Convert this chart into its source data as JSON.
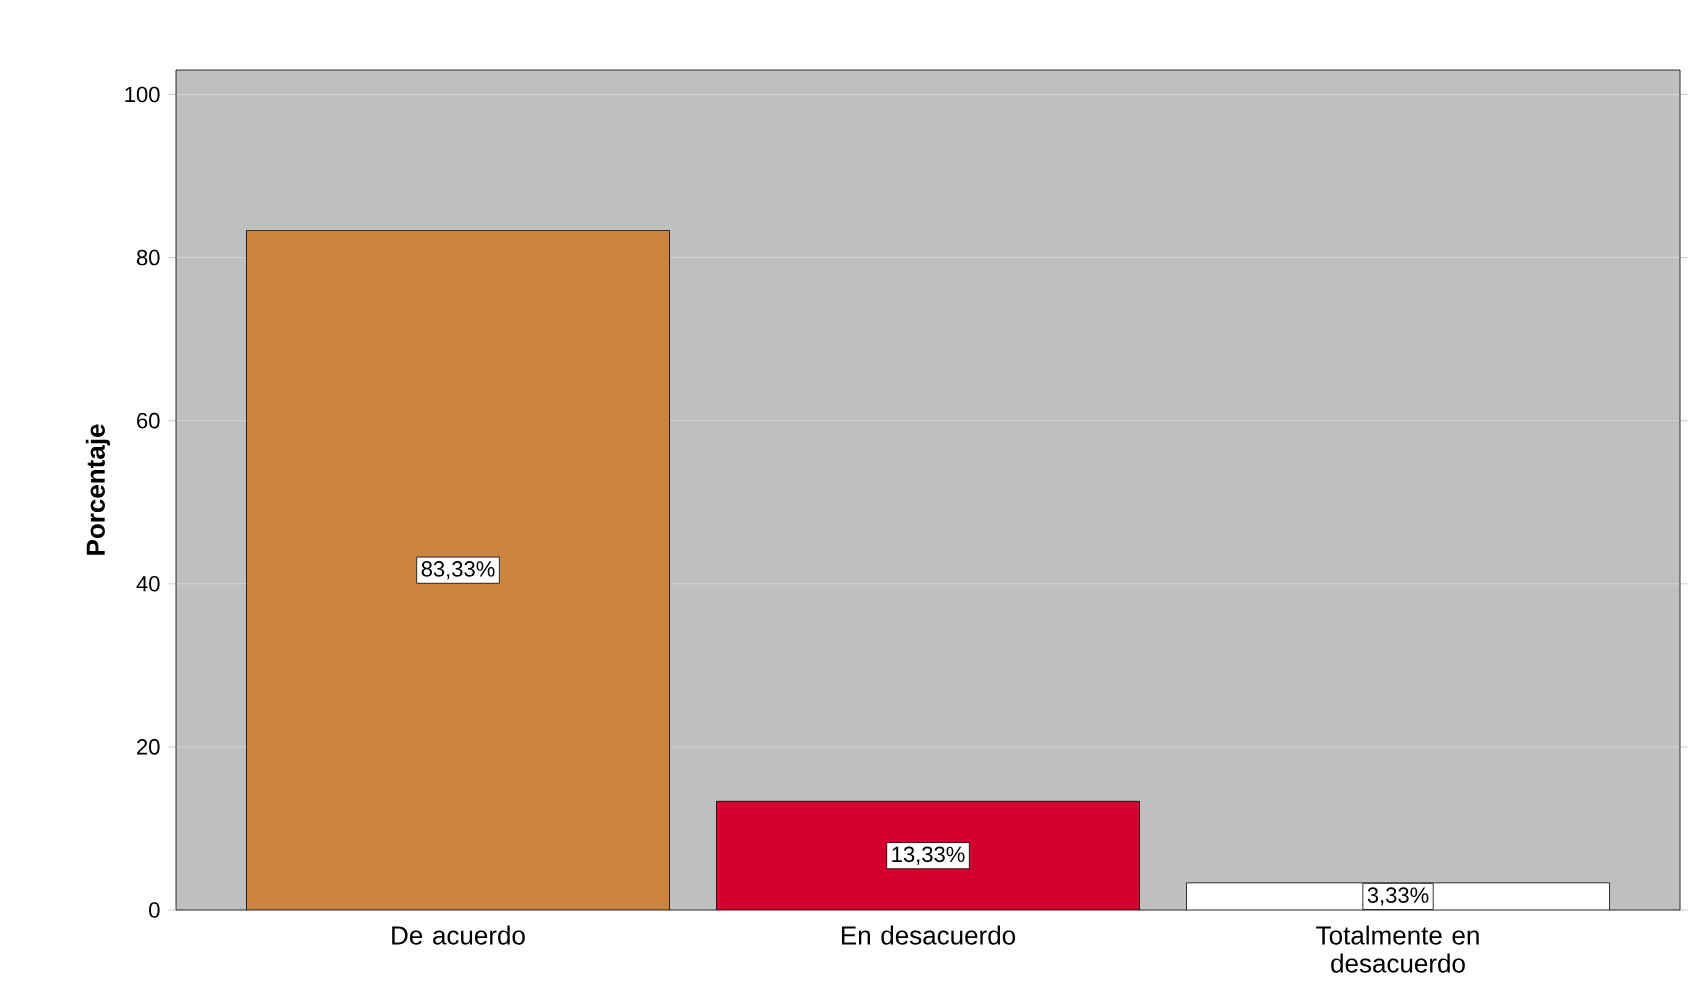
{
  "chart_data": {
    "type": "bar",
    "ylabel": "Porcentaje",
    "categories": [
      "De acuerdo",
      "En desacuerdo",
      "Totalmente en desacuerdo"
    ],
    "values": [
      83.33,
      13.33,
      3.33
    ],
    "colors": [
      "#cc8540",
      "#d4002f",
      "#ffffff"
    ],
    "value_labels": [
      "83,33%",
      "13,33%",
      "3,33%"
    ],
    "ylim": [
      0,
      103
    ],
    "yticks": [
      0,
      20,
      40,
      60,
      80,
      100
    ],
    "grid": "y"
  }
}
